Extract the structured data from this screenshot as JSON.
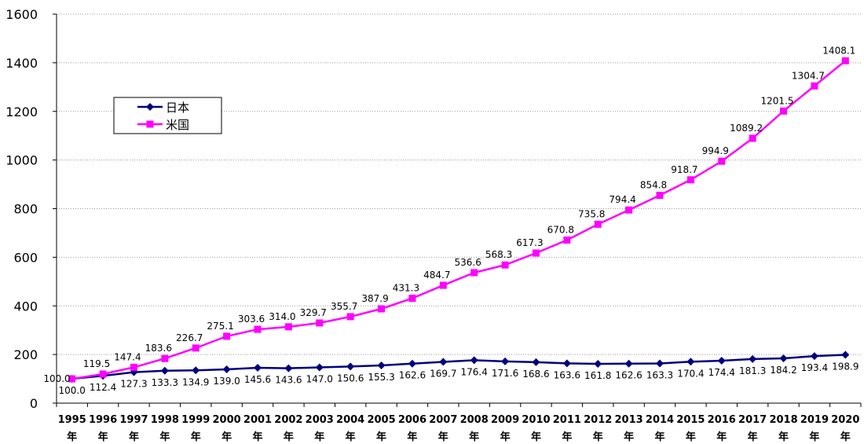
{
  "chart_data": {
    "type": "line",
    "title": "",
    "xlabel": "",
    "ylabel": "",
    "ylim": [
      0,
      1600
    ],
    "yticks": [
      0,
      200,
      400,
      600,
      800,
      1000,
      1200,
      1400,
      1600
    ],
    "grid": true,
    "legend_position": "top-left",
    "categories": [
      "1995\n年",
      "1996\n年",
      "1997\n年",
      "1998\n年",
      "1999\n年",
      "2000\n年",
      "2001\n年",
      "2002\n年",
      "2003\n年",
      "2004\n年",
      "2005\n年",
      "2006\n年",
      "2007\n年",
      "2008\n年",
      "2009\n年",
      "2010\n年",
      "2011\n年",
      "2012\n年",
      "2013\n年",
      "2014\n年",
      "2015\n年",
      "2016\n年",
      "2017\n年",
      "2018\n年",
      "2019\n年",
      "2020\n年"
    ],
    "series": [
      {
        "name": "日本",
        "color": "#000080",
        "marker": "diamond",
        "values": [
          100.0,
          112.4,
          127.3,
          133.3,
          134.9,
          139.0,
          145.6,
          143.6,
          147.0,
          150.6,
          155.3,
          162.6,
          169.7,
          176.4,
          171.6,
          168.6,
          163.6,
          161.8,
          162.6,
          163.3,
          170.4,
          174.4,
          181.3,
          184.2,
          193.4,
          198.9
        ]
      },
      {
        "name": "米国",
        "color": "#ff00ff",
        "marker": "square",
        "values": [
          100.0,
          119.5,
          147.4,
          183.6,
          226.7,
          275.1,
          303.6,
          314.0,
          329.7,
          355.7,
          387.9,
          431.3,
          484.7,
          536.6,
          568.3,
          617.3,
          670.8,
          735.8,
          794.4,
          854.8,
          918.7,
          994.9,
          1089.2,
          1201.5,
          1304.7,
          1408.1
        ]
      }
    ]
  }
}
